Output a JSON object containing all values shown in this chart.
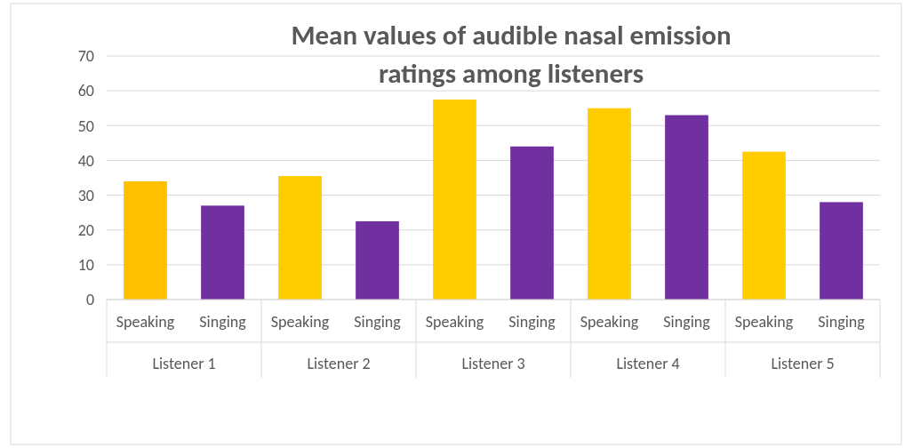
{
  "chart_data": {
    "type": "bar",
    "title": "Mean values of audible nasal emission ratings among listeners",
    "categories": [
      "Speaking",
      "Singing",
      "Speaking",
      "Singing",
      "Speaking",
      "Singing",
      "Speaking",
      "Singing",
      "Speaking",
      "Singing"
    ],
    "values": [
      34,
      27,
      35.5,
      22.5,
      57.5,
      44,
      55,
      53,
      42.5,
      28
    ],
    "colors": [
      "#ffc000",
      "#7030a0",
      "#ffcc00",
      "#7030a0",
      "#ffcc00",
      "#7030a0",
      "#ffcc00",
      "#7030a0",
      "#ffcc00",
      "#7030a0"
    ],
    "annotations": [
      "Listener 1",
      "Listener 2",
      "Listener 3",
      "Listener 4",
      "Listener 5"
    ],
    "ylim": [
      0,
      70
    ],
    "yticks": [
      0,
      10,
      20,
      30,
      40,
      50,
      60,
      70
    ],
    "grid": "y"
  }
}
